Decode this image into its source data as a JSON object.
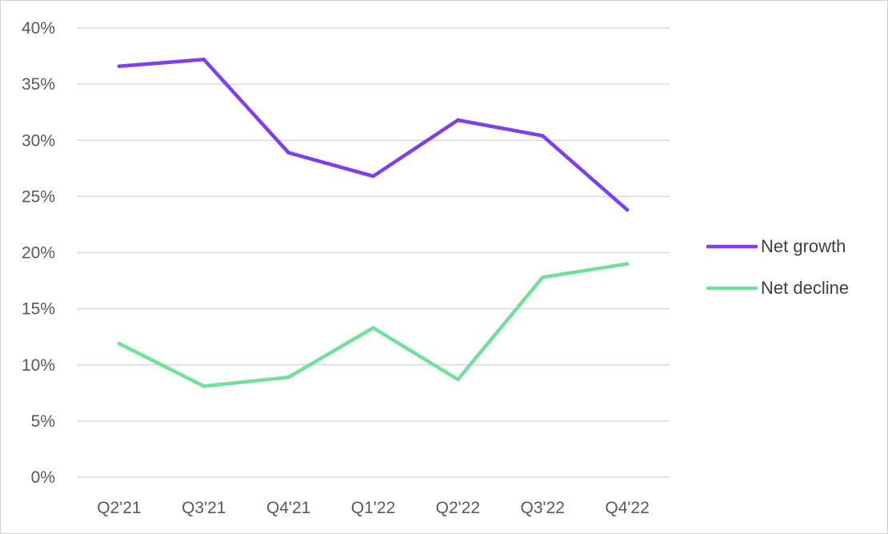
{
  "chart_data": {
    "type": "line",
    "title": "",
    "xlabel": "",
    "ylabel": "",
    "categories": [
      "Q2'21",
      "Q3'21",
      "Q4'21",
      "Q1'22",
      "Q2'22",
      "Q3'22",
      "Q4'22"
    ],
    "y_tick_labels": [
      "0%",
      "5%",
      "10%",
      "15%",
      "20%",
      "25%",
      "30%",
      "35%",
      "40%"
    ],
    "ylim": [
      0,
      40
    ],
    "grid": true,
    "legend_position": "right",
    "series": [
      {
        "name": "Net growth",
        "color": "#7f3fef",
        "values": [
          36.6,
          37.2,
          28.9,
          26.8,
          31.8,
          30.4,
          23.8
        ]
      },
      {
        "name": "Net decline",
        "color": "#72e09a",
        "values": [
          11.9,
          8.1,
          8.9,
          13.3,
          8.7,
          17.8,
          19.0
        ]
      }
    ]
  }
}
